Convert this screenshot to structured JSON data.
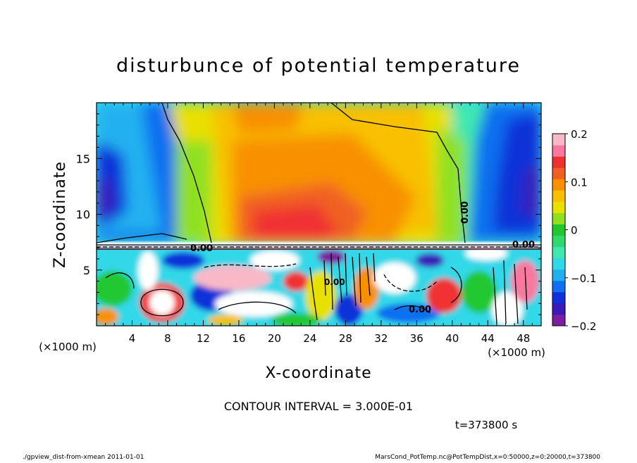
{
  "chart_data": {
    "type": "heatmap",
    "title": "disturbunce of potential temperature",
    "xlabel": "X-coordinate",
    "ylabel": "Z-coordinate",
    "x_unit": "(×1000 m)",
    "y_unit": "(×1000 m)",
    "xlim": [
      0,
      50
    ],
    "ylim": [
      0,
      20
    ],
    "xticks": [
      4,
      8,
      12,
      16,
      20,
      24,
      28,
      32,
      36,
      40,
      44,
      48
    ],
    "yticks": [
      5,
      10,
      15
    ],
    "colorbar": {
      "ticks": [
        {
          "value": 0.2,
          "label": "0.2"
        },
        {
          "value": 0.1,
          "label": "0.1"
        },
        {
          "value": 0,
          "label": "0"
        },
        {
          "value": -0.1,
          "label": "−0.1"
        },
        {
          "value": -0.2,
          "label": "−0.2"
        }
      ],
      "range": [
        -0.2,
        0.2
      ],
      "colors": [
        "#7a1fa0",
        "#3a1ab8",
        "#1030d8",
        "#1070f0",
        "#20b0f0",
        "#30d8e8",
        "#40e8b0",
        "#30d870",
        "#20c830",
        "#90e020",
        "#e8e000",
        "#f8c000",
        "#f89000",
        "#f06020",
        "#f03030",
        "#f878a0",
        "#f8b8c8"
      ]
    },
    "contour_labels": [
      "0.00",
      "0.00",
      "0.00",
      "0.00",
      "0.00"
    ],
    "annotations": {
      "contour_interval": "CONTOUR INTERVAL = 3.000E-01",
      "time": "t=373800 s"
    }
  },
  "footer": {
    "left": "./gpview_dist-from-xmean   2011-01-01",
    "right": "MarsCond_PotTemp.nc@PotTempDist,x=0:50000,z=0:20000,t=373800"
  }
}
